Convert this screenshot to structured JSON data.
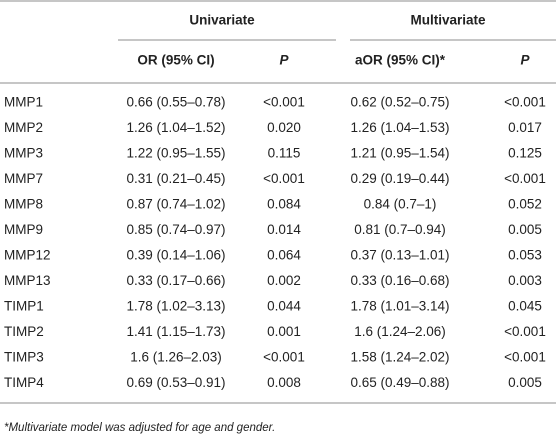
{
  "table": {
    "group_headers": [
      "Univariate",
      "Multivariate"
    ],
    "column_headers": [
      "OR (95% CI)",
      "P",
      "aOR (95% CI)*",
      "P"
    ],
    "rows": [
      [
        "MMP1",
        "0.66 (0.55–0.78)",
        "<0.001",
        "0.62 (0.52–0.75)",
        "<0.001"
      ],
      [
        "MMP2",
        "1.26 (1.04–1.52)",
        "0.020",
        "1.26 (1.04–1.53)",
        "0.017"
      ],
      [
        "MMP3",
        "1.22 (0.95–1.55)",
        "0.115",
        "1.21 (0.95–1.54)",
        "0.125"
      ],
      [
        "MMP7",
        "0.31 (0.21–0.45)",
        "<0.001",
        "0.29 (0.19–0.44)",
        "<0.001"
      ],
      [
        "MMP8",
        "0.87 (0.74–1.02)",
        "0.084",
        "0.84 (0.7–1)",
        "0.052"
      ],
      [
        "MMP9",
        "0.85 (0.74–0.97)",
        "0.014",
        "0.81 (0.7–0.94)",
        "0.005"
      ],
      [
        "MMP12",
        "0.39 (0.14–1.06)",
        "0.064",
        "0.37 (0.13–1.01)",
        "0.053"
      ],
      [
        "MMP13",
        "0.33 (0.17–0.66)",
        "0.002",
        "0.33 (0.16–0.68)",
        "0.003"
      ],
      [
        "TIMP1",
        "1.78 (1.02–3.13)",
        "0.044",
        "1.78 (1.01–3.14)",
        "0.045"
      ],
      [
        "TIMP2",
        "1.41 (1.15–1.73)",
        "0.001",
        "1.6 (1.24–2.06)",
        "<0.001"
      ],
      [
        "TIMP3",
        "1.6 (1.26–2.03)",
        "<0.001",
        "1.58 (1.24–2.02)",
        "<0.001"
      ],
      [
        "TIMP4",
        "0.69 (0.53–0.91)",
        "0.008",
        "0.65 (0.49–0.88)",
        "0.005"
      ]
    ],
    "footnote": "*Multivariate model was adjusted for age and gender."
  }
}
